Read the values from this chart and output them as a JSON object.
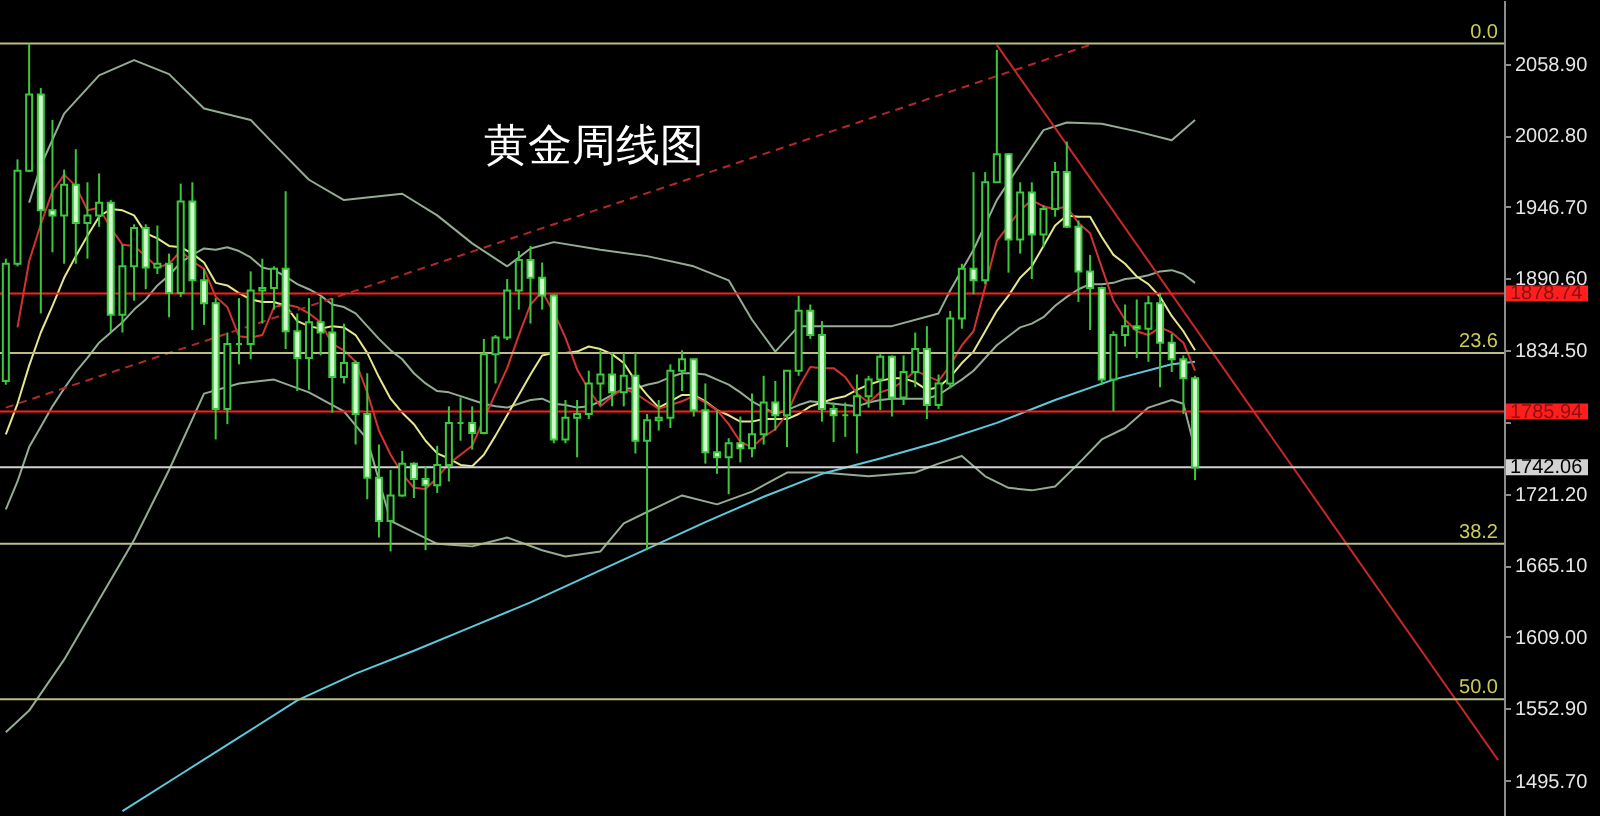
{
  "chart_data": {
    "type": "candlestick",
    "title": "黄金周线图",
    "categories": [
      null,
      null,
      null,
      null,
      null,
      null,
      null,
      null,
      null,
      null,
      null,
      null,
      null,
      null,
      null,
      null,
      null,
      null,
      null,
      null,
      null,
      null,
      null,
      null,
      null,
      null,
      null,
      null,
      null,
      null,
      null,
      null,
      null,
      null,
      null,
      null,
      null,
      null,
      null,
      null,
      null,
      null,
      null,
      null,
      null,
      null,
      null,
      null,
      null,
      null,
      null,
      null,
      null,
      null,
      null,
      null,
      null,
      null,
      null,
      null,
      null,
      null,
      null,
      null,
      null,
      null,
      null,
      null,
      null,
      null,
      null,
      null,
      null,
      null,
      null,
      null,
      null,
      null,
      null,
      null,
      null,
      null,
      null,
      null,
      null,
      null,
      null,
      null,
      null,
      null,
      null,
      null,
      null,
      null,
      null,
      null,
      null,
      null,
      null,
      null,
      null,
      null,
      null,
      null,
      null,
      null,
      null,
      null,
      null,
      null,
      null,
      null,
      null,
      null,
      null,
      null,
      null,
      null,
      null,
      null,
      null,
      null,
      null,
      null,
      null,
      null,
      null,
      null,
      null
    ],
    "ohlc": [
      [
        1810,
        1906,
        1807,
        1902
      ],
      [
        1902,
        1984,
        1900,
        1975
      ],
      [
        1975,
        2075,
        1974,
        2035
      ],
      [
        2035,
        2040,
        1863,
        1944
      ],
      [
        1944,
        2015,
        1911,
        1940
      ],
      [
        1940,
        1976,
        1902,
        1964
      ],
      [
        1964,
        1992,
        1902,
        1934
      ],
      [
        1934,
        1966,
        1906,
        1940
      ],
      [
        1940,
        1973,
        1931,
        1950
      ],
      [
        1950,
        1952,
        1848,
        1862
      ],
      [
        1862,
        1917,
        1848,
        1900
      ],
      [
        1900,
        1933,
        1873,
        1930
      ],
      [
        1930,
        1933,
        1882,
        1899
      ],
      [
        1899,
        1932,
        1894,
        1902
      ],
      [
        1902,
        1910,
        1860,
        1879
      ],
      [
        1879,
        1965,
        1876,
        1951
      ],
      [
        1951,
        1966,
        1850,
        1889
      ],
      [
        1889,
        1898,
        1854,
        1871
      ],
      [
        1871,
        1875,
        1764,
        1788
      ],
      [
        1788,
        1848,
        1776,
        1839
      ],
      [
        1839,
        1875,
        1823,
        1839
      ],
      [
        1839,
        1896,
        1827,
        1881
      ],
      [
        1881,
        1906,
        1855,
        1883
      ],
      [
        1883,
        1900,
        1866,
        1898
      ],
      [
        1898,
        1959,
        1835,
        1849
      ],
      [
        1849,
        1863,
        1802,
        1828
      ],
      [
        1828,
        1875,
        1803,
        1856
      ],
      [
        1856,
        1876,
        1830,
        1848
      ],
      [
        1848,
        1875,
        1785,
        1813
      ],
      [
        1813,
        1855,
        1808,
        1824
      ],
      [
        1824,
        1826,
        1760,
        1784
      ],
      [
        1784,
        1816,
        1717,
        1734
      ],
      [
        1734,
        1760,
        1687,
        1700
      ],
      [
        1700,
        1740,
        1676,
        1720
      ],
      [
        1720,
        1755,
        1719,
        1745
      ],
      [
        1745,
        1746,
        1718,
        1733
      ],
      [
        1733,
        1743,
        1677,
        1728
      ],
      [
        1728,
        1759,
        1722,
        1744
      ],
      [
        1744,
        1790,
        1731,
        1777
      ],
      [
        1777,
        1797,
        1763,
        1777
      ],
      [
        1777,
        1790,
        1756,
        1769
      ],
      [
        1769,
        1843,
        1768,
        1831
      ],
      [
        1831,
        1846,
        1808,
        1844
      ],
      [
        1844,
        1890,
        1842,
        1881
      ],
      [
        1881,
        1912,
        1866,
        1905
      ],
      [
        1905,
        1916,
        1855,
        1891
      ],
      [
        1891,
        1903,
        1866,
        1877
      ],
      [
        1877,
        1878,
        1761,
        1764
      ],
      [
        1764,
        1795,
        1761,
        1781
      ],
      [
        1781,
        1795,
        1750,
        1784
      ],
      [
        1784,
        1818,
        1780,
        1808
      ],
      [
        1808,
        1834,
        1791,
        1815
      ],
      [
        1815,
        1832,
        1790,
        1801
      ],
      [
        1801,
        1832,
        1790,
        1814
      ],
      [
        1814,
        1832,
        1753,
        1763
      ],
      [
        1763,
        1784,
        1677,
        1779
      ],
      [
        1779,
        1795,
        1771,
        1781
      ],
      [
        1781,
        1823,
        1773,
        1818
      ],
      [
        1818,
        1834,
        1802,
        1827
      ],
      [
        1827,
        1827,
        1782,
        1787
      ],
      [
        1787,
        1808,
        1745,
        1754
      ],
      [
        1754,
        1787,
        1737,
        1750
      ],
      [
        1750,
        1765,
        1721,
        1761
      ],
      [
        1761,
        1782,
        1746,
        1757
      ],
      [
        1757,
        1800,
        1750,
        1768
      ],
      [
        1768,
        1814,
        1760,
        1793
      ],
      [
        1793,
        1810,
        1771,
        1783
      ],
      [
        1783,
        1818,
        1758,
        1818
      ],
      [
        1818,
        1877,
        1814,
        1865
      ],
      [
        1865,
        1870,
        1843,
        1846
      ],
      [
        1846,
        1857,
        1778,
        1788
      ],
      [
        1788,
        1793,
        1762,
        1783
      ],
      [
        1783,
        1793,
        1766,
        1783
      ],
      [
        1783,
        1815,
        1753,
        1798
      ],
      [
        1798,
        1814,
        1789,
        1811
      ],
      [
        1811,
        1831,
        1787,
        1829
      ],
      [
        1829,
        1830,
        1782,
        1797
      ],
      [
        1797,
        1830,
        1791,
        1817
      ],
      [
        1817,
        1848,
        1805,
        1835
      ],
      [
        1835,
        1853,
        1780,
        1791
      ],
      [
        1791,
        1815,
        1788,
        1808
      ],
      [
        1808,
        1865,
        1804,
        1859
      ],
      [
        1859,
        1902,
        1851,
        1898
      ],
      [
        1898,
        1974,
        1878,
        1889
      ],
      [
        1889,
        1974,
        1886,
        1966
      ],
      [
        1966,
        2070,
        1966,
        1988
      ],
      [
        1988,
        1989,
        1895,
        1921
      ],
      [
        1921,
        1966,
        1910,
        1958
      ],
      [
        1958,
        1966,
        1890,
        1925
      ],
      [
        1925,
        1948,
        1915,
        1945
      ],
      [
        1945,
        1982,
        1939,
        1974
      ],
      [
        1974,
        1998,
        1930,
        1931
      ],
      [
        1931,
        1936,
        1872,
        1896
      ],
      [
        1896,
        1909,
        1850,
        1883
      ],
      [
        1883,
        1884,
        1807,
        1811
      ],
      [
        1811,
        1849,
        1786,
        1846
      ],
      [
        1846,
        1870,
        1837,
        1853
      ],
      [
        1853,
        1874,
        1828,
        1851
      ],
      [
        1851,
        1877,
        1825,
        1871
      ],
      [
        1871,
        1879,
        1805,
        1840
      ],
      [
        1840,
        1847,
        1817,
        1827
      ],
      [
        1827,
        1830,
        1784,
        1812
      ],
      [
        1812,
        1814,
        1732,
        1742
      ],
      null,
      null,
      null,
      null,
      null,
      null,
      null,
      null,
      null,
      null,
      null,
      null,
      null,
      null,
      null,
      null,
      null,
      null,
      null,
      null,
      null,
      null,
      null,
      null,
      null,
      null
    ],
    "color": "#3cc83c",
    "colors": [
      null,
      null,
      null,
      "#d4f8d0",
      "#d4f8d0",
      null,
      "#d4f8d0",
      null,
      null,
      "#d4f8d0",
      null,
      null,
      "#d4f8d0",
      null,
      "#d4f8d0",
      null,
      "#d4f8d0",
      "#d4f8d0",
      "#d4f8d0",
      null,
      null,
      null,
      null,
      null,
      "#d4f8d0",
      "#d4f8d0",
      null,
      "#d4f8d0",
      "#d4f8d0",
      null,
      "#d4f8d0",
      "#d4f8d0",
      "#d4f8d0",
      null,
      null,
      "#d4f8d0",
      "#d4f8d0",
      null,
      null,
      null,
      "#d4f8d0",
      null,
      null,
      null,
      null,
      "#d4f8d0",
      "#d4f8d0",
      "#d4f8d0",
      null,
      null,
      null,
      null,
      "#d4f8d0",
      null,
      "#d4f8d0",
      null,
      null,
      null,
      null,
      "#d4f8d0",
      "#d4f8d0",
      "#d4f8d0",
      null,
      "#d4f8d0",
      null,
      null,
      "#d4f8d0",
      null,
      null,
      "#d4f8d0",
      "#d4f8d0",
      "#d4f8d0",
      null,
      null,
      null,
      null,
      "#d4f8d0",
      null,
      null,
      "#d4f8d0",
      null,
      null,
      null,
      "#d4f8d0",
      null,
      null,
      "#d4f8d0",
      null,
      "#d4f8d0",
      null,
      null,
      "#d4f8d0",
      "#d4f8d0",
      "#d4f8d0",
      "#d4f8d0",
      null,
      null,
      "#d4f8d0",
      null,
      "#d4f8d0",
      "#d4f8d0",
      "#d4f8d0",
      "#d4f8d0",
      null,
      null,
      null,
      null,
      null,
      null,
      null,
      null,
      null,
      null,
      null,
      null,
      null,
      null,
      null,
      null,
      null,
      null,
      null,
      null,
      null,
      null,
      null,
      null,
      null,
      null
    ],
    "series": [
      {
        "type": "line",
        "color": "#94ac94",
        "values": [
          null,
          null,
          1950,
          1979,
          null,
          2020,
          null,
          null,
          2050,
          null,
          null,
          2062,
          null,
          null,
          2051,
          null,
          null,
          2024,
          null,
          null,
          null,
          2015,
          null,
          1996,
          null,
          null,
          1968,
          null,
          null,
          1952,
          null,
          null,
          1955,
          null,
          1957,
          null,
          null,
          1940,
          null,
          null,
          1918,
          null,
          null,
          1900,
          null,
          1914,
          null,
          1919,
          null,
          null,
          null,
          1913,
          null,
          null,
          null,
          1908,
          null,
          null,
          null,
          1900,
          null,
          null,
          1889,
          null,
          1858,
          null,
          1833,
          null,
          1853,
          null,
          null,
          null,
          1853,
          null,
          null,
          null,
          1853,
          null,
          null,
          null,
          1863,
          1881,
          null,
          1913,
          null,
          1952,
          null,
          1980,
          null,
          2007,
          null,
          2013,
          null,
          null,
          2012,
          null,
          null,
          2006,
          null,
          null,
          1999,
          null,
          2015,
          null,
          null,
          null,
          null,
          null,
          null,
          null,
          null,
          null,
          null,
          null,
          null,
          null,
          null,
          null,
          null,
          null,
          null,
          null,
          null,
          null,
          null,
          null,
          null,
          null,
          null
        ]
      },
      {
        "type": "line",
        "color": "#94ac94",
        "values": [
          1534,
          null,
          1551,
          null,
          null,
          1591,
          null,
          null,
          1638,
          null,
          null,
          1685,
          null,
          null,
          1740,
          null,
          null,
          1800,
          null,
          null,
          1808,
          null,
          null,
          1811,
          null,
          null,
          1801,
          null,
          null,
          1786,
          null,
          1764,
          null,
          1700,
          null,
          null,
          null,
          1682,
          null,
          null,
          1680,
          null,
          null,
          1687,
          null,
          null,
          1677,
          null,
          1672,
          null,
          null,
          1676,
          null,
          1698,
          null,
          1707,
          null,
          null,
          1720,
          null,
          null,
          1713,
          null,
          null,
          1723,
          null,
          null,
          1738,
          null,
          null,
          1738,
          null,
          null,
          null,
          1735,
          null,
          null,
          null,
          1738,
          null,
          1745,
          null,
          1751,
          null,
          1735,
          null,
          1726,
          null,
          1724,
          null,
          1727,
          null,
          1745,
          null,
          1764,
          null,
          1773,
          null,
          1789,
          null,
          1795,
          1792,
          1756,
          null,
          null,
          null,
          null,
          null,
          null,
          null,
          null,
          null,
          null,
          null,
          null,
          null,
          null,
          null,
          null,
          null,
          null,
          null,
          null,
          null,
          null,
          null,
          null,
          null,
          null
        ]
      },
      {
        "type": "line",
        "color": "#94ac94",
        "values": [
          1709,
          1731,
          1758,
          1774,
          1790,
          1804,
          1817,
          1828,
          1840,
          1848,
          1856,
          1866,
          1874,
          1885,
          1893,
          1903,
          1909,
          1914,
          1913,
          1915,
          1912,
          1907,
          1899,
          1897,
          1892,
          1886,
          1882,
          1877,
          1870,
          1868,
          1863,
          1853,
          1843,
          1834,
          1827,
          1816,
          1808,
          1802,
          1801,
          1798,
          1795,
          1792,
          1790,
          1789,
          1792,
          1795,
          1796,
          1792,
          1791,
          1789,
          1790,
          1794,
          1799,
          1804,
          1804,
          1807,
          1809,
          1813,
          1816,
          1816,
          1815,
          1811,
          1807,
          1801,
          1794,
          1789,
          1784,
          1787,
          1791,
          1794,
          1793,
          1792,
          1791,
          1790,
          1793,
          1795,
          1796,
          1796,
          1796,
          1796,
          1799,
          1805,
          1811,
          1818,
          1828,
          1838,
          1845,
          1852,
          1855,
          1860,
          1869,
          1876,
          1882,
          1886,
          1886,
          1887,
          1890,
          1891,
          1893,
          1896,
          1897,
          1894,
          1887,
          null,
          null,
          null,
          null,
          null,
          null,
          null,
          null,
          null,
          null,
          null,
          null,
          null,
          null,
          null,
          null,
          null,
          null,
          null,
          null,
          null,
          null,
          null,
          null,
          null,
          null
        ]
      },
      {
        "type": "line",
        "color": "#5ec8dc",
        "values": [
          null,
          null,
          null,
          null,
          null,
          null,
          null,
          null,
          null,
          null,
          1472,
          null,
          null,
          null,
          null,
          1501,
          null,
          null,
          null,
          null,
          1530,
          null,
          null,
          null,
          null,
          1559,
          null,
          null,
          null,
          null,
          1580,
          null,
          null,
          null,
          null,
          1598,
          null,
          null,
          null,
          null,
          1617,
          null,
          null,
          null,
          null,
          1636,
          null,
          null,
          null,
          null,
          1657,
          null,
          null,
          null,
          null,
          1678,
          null,
          null,
          null,
          null,
          1699,
          null,
          null,
          null,
          null,
          1719,
          null,
          null,
          null,
          null,
          1737,
          null,
          null,
          null,
          null,
          1749,
          null,
          null,
          null,
          null,
          1762,
          null,
          null,
          null,
          null,
          1777,
          null,
          null,
          null,
          null,
          1795,
          null,
          null,
          null,
          null,
          1811,
          null,
          null,
          null,
          null,
          1823,
          null,
          1825,
          null,
          null,
          null,
          null,
          null,
          null,
          null,
          null,
          null,
          null,
          null,
          null,
          null,
          null,
          null,
          null,
          null,
          null,
          null,
          null,
          null,
          null,
          null,
          null,
          null,
          null
        ]
      },
      {
        "type": "line",
        "color": "#e6e68c",
        "values": [
          1768,
          1792,
          1822,
          1848,
          1869,
          1891,
          1908,
          1924,
          1939,
          1945,
          1944,
          1940,
          1926,
          1922,
          1916,
          1915,
          1910,
          1903,
          1887,
          1885,
          1879,
          1874,
          1872,
          1872,
          1869,
          1857,
          1853,
          1851,
          1853,
          1852,
          1846,
          1832,
          1813,
          1796,
          1785,
          1776,
          1763,
          1753,
          1749,
          1744,
          1743,
          1752,
          1767,
          1783,
          1799,
          1815,
          1830,
          1832,
          1832,
          1833,
          1837,
          1835,
          1831,
          1824,
          1810,
          1799,
          1789,
          1794,
          1799,
          1799,
          1794,
          1787,
          1783,
          1778,
          1778,
          1780,
          1780,
          1780,
          1784,
          1790,
          1793,
          1796,
          1798,
          1803,
          1807,
          1810,
          1812,
          1812,
          1809,
          1803,
          1805,
          1813,
          1824,
          1833,
          1849,
          1865,
          1877,
          1891,
          1900,
          1916,
          1932,
          1940,
          1939,
          1939,
          1923,
          1909,
          1902,
          1892,
          1886,
          1876,
          1861,
          1849,
          1834,
          null,
          null,
          null,
          null,
          null,
          null,
          null,
          null,
          null,
          null,
          null,
          null,
          null,
          null,
          null,
          null,
          null,
          null,
          null,
          null,
          null,
          null,
          null,
          null,
          null,
          null
        ]
      },
      {
        "type": "line",
        "color": "#d23232",
        "values": [
          null,
          1852,
          1904,
          1933,
          1959,
          1972,
          1963,
          1944,
          1946,
          1930,
          1917,
          1916,
          1908,
          1899,
          1902,
          1912,
          1904,
          1898,
          1876,
          1868,
          1845,
          1844,
          1846,
          1868,
          1870,
          1868,
          1863,
          1856,
          1839,
          1834,
          1825,
          1801,
          1771,
          1752,
          1737,
          1726,
          1725,
          1734,
          1745,
          1752,
          1759,
          1780,
          1800,
          1820,
          1846,
          1870,
          1880,
          1864,
          1844,
          1819,
          1803,
          1790,
          1798,
          1804,
          1800,
          1794,
          1788,
          1791,
          1794,
          1798,
          1793,
          1787,
          1776,
          1762,
          1758,
          1766,
          1772,
          1784,
          1805,
          1821,
          1820,
          1820,
          1813,
          1800,
          1793,
          1801,
          1804,
          1810,
          1818,
          1814,
          1810,
          1822,
          1838,
          1849,
          1884,
          1920,
          1932,
          1944,
          1952,
          1947,
          1945,
          1947,
          1934,
          1926,
          1899,
          1873,
          1858,
          1849,
          1846,
          1852,
          1848,
          1840,
          1818,
          null,
          null,
          null,
          null,
          null,
          null,
          null,
          null,
          null,
          null,
          null,
          null,
          null,
          null,
          null,
          null,
          null,
          null,
          null,
          null,
          null,
          null,
          null,
          null,
          null,
          null
        ]
      },
      {
        "type": "line",
        "color": "#b42828",
        "line_style": "dashed",
        "values": [
          1789,
          null,
          null,
          null,
          null,
          null,
          null,
          null,
          null,
          null,
          null,
          null,
          null,
          null,
          null,
          null,
          null,
          null,
          null,
          null,
          null,
          null,
          null,
          null,
          null,
          null,
          null,
          null,
          null,
          null,
          null,
          null,
          null,
          null,
          null,
          null,
          null,
          null,
          null,
          null,
          null,
          null,
          null,
          null,
          null,
          null,
          null,
          null,
          null,
          null,
          null,
          null,
          null,
          null,
          null,
          null,
          null,
          null,
          null,
          null,
          null,
          null,
          null,
          null,
          null,
          null,
          null,
          null,
          null,
          null,
          null,
          null,
          null,
          null,
          null,
          null,
          null,
          null,
          null,
          null,
          null,
          null,
          null,
          null,
          null,
          null,
          null,
          null,
          null,
          null,
          null,
          null,
          null,
          2074,
          null,
          null,
          null,
          null,
          null,
          null,
          null,
          null,
          null,
          null,
          null,
          null,
          null,
          null,
          null,
          null,
          null,
          null,
          null,
          null,
          null,
          null,
          null,
          null,
          null,
          null,
          null,
          null,
          null,
          null,
          null,
          null,
          null,
          null,
          null
        ]
      },
      {
        "type": "line",
        "color": "#c82828",
        "values": [
          null,
          null,
          null,
          null,
          null,
          null,
          null,
          null,
          null,
          null,
          null,
          null,
          null,
          null,
          null,
          null,
          null,
          null,
          null,
          null,
          null,
          null,
          null,
          null,
          null,
          null,
          null,
          null,
          null,
          null,
          null,
          null,
          null,
          null,
          null,
          null,
          null,
          null,
          null,
          null,
          null,
          null,
          null,
          null,
          null,
          null,
          null,
          null,
          null,
          null,
          null,
          null,
          null,
          null,
          null,
          null,
          null,
          null,
          null,
          null,
          null,
          null,
          null,
          null,
          null,
          null,
          null,
          null,
          null,
          null,
          null,
          null,
          null,
          null,
          null,
          null,
          null,
          null,
          null,
          null,
          null,
          null,
          null,
          null,
          null,
          2074,
          null,
          null,
          null,
          null,
          null,
          null,
          null,
          null,
          null,
          null,
          null,
          null,
          null,
          null,
          null,
          null,
          null,
          null,
          null,
          null,
          null,
          null,
          null,
          null,
          null,
          null,
          null,
          null,
          null,
          null,
          null,
          null,
          null,
          null,
          null,
          null,
          null,
          null,
          null,
          null,
          null,
          null,
          1512
        ]
      }
    ],
    "ylim": [
      1468.2,
      2109.2
    ],
    "yticks": [
      {
        "value": 2058.9,
        "label": "2058.90"
      },
      {
        "value": 2002.8,
        "label": "2002.80"
      },
      {
        "value": 1946.7,
        "label": "1946.70"
      },
      {
        "value": 1890.6,
        "label": "1890.60"
      },
      {
        "value": 1834.5,
        "label": "1834.50"
      },
      {
        "value": 1777.3,
        "label": null
      },
      {
        "value": 1721.2,
        "label": "1721.20"
      },
      {
        "value": 1665.1,
        "label": "1665.10"
      },
      {
        "value": 1609.0,
        "label": "1609.00"
      },
      {
        "value": 1552.9,
        "label": "1552.90"
      },
      {
        "value": 1495.7,
        "label": "1495.70"
      }
    ],
    "ref_lines": [
      {
        "axis": "y",
        "value": 2075,
        "color": "#bcbc84"
      },
      {
        "axis": "y",
        "value": 1832,
        "color": "#bcbc84"
      },
      {
        "axis": "y",
        "value": 1682,
        "color": "#bcbc84"
      },
      {
        "axis": "y",
        "value": 1560,
        "color": "#bcbc84"
      },
      {
        "axis": "y",
        "value": 1878.74,
        "label": "1878.74",
        "color": "#ff1e1e"
      },
      {
        "axis": "y",
        "value": 1785.94,
        "label": "1785.94",
        "color": "#ff1e1e"
      },
      {
        "axis": "y",
        "value": 1742.06,
        "label": "1742.06",
        "color": "#d2d2d2"
      }
    ],
    "annotations": [
      {
        "text": "0.0",
        "y": 2075
      },
      {
        "text": "23.6",
        "y": 1832
      },
      {
        "text": "38.2",
        "y": 1682
      },
      {
        "text": "50.0",
        "y": 1560
      }
    ],
    "tick_labels": "y"
  }
}
